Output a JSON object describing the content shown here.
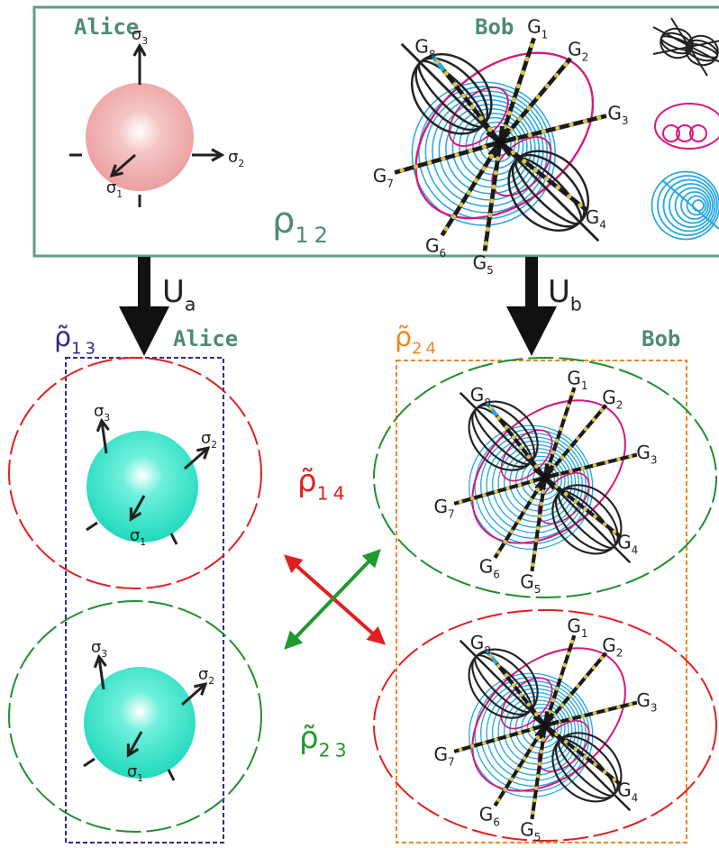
{
  "top_panel": {
    "alice": {
      "label": "Alice",
      "axes": [
        {
          "base": "σ",
          "sub": "3"
        },
        {
          "base": "σ",
          "sub": "2"
        },
        {
          "base": "σ",
          "sub": "1"
        }
      ]
    },
    "bob": {
      "label": "Bob",
      "gates": [
        {
          "base": "G",
          "sub": "1"
        },
        {
          "base": "G",
          "sub": "2"
        },
        {
          "base": "G",
          "sub": "3"
        },
        {
          "base": "G",
          "sub": "4"
        },
        {
          "base": "G",
          "sub": "5"
        },
        {
          "base": "G",
          "sub": "6"
        },
        {
          "base": "G",
          "sub": "7"
        },
        {
          "base": "G",
          "sub": "8"
        }
      ]
    },
    "state": {
      "base": "ρ",
      "sub": "12"
    }
  },
  "operations": [
    {
      "base": "U",
      "sub": "a"
    },
    {
      "base": "U",
      "sub": "b"
    }
  ],
  "bottom_panel": {
    "alice_label": "Alice",
    "bob_label": "Bob",
    "states": [
      {
        "base": "ρ̃",
        "sub": "13"
      },
      {
        "base": "ρ̃",
        "sub": "24"
      },
      {
        "base": "ρ̃",
        "sub": "14"
      },
      {
        "base": "ρ̃",
        "sub": "23"
      }
    ],
    "alice_spheres": [
      {
        "axes": [
          {
            "base": "σ",
            "sub": "3"
          },
          {
            "base": "σ",
            "sub": "2"
          },
          {
            "base": "σ",
            "sub": "1"
          }
        ]
      },
      {
        "axes": [
          {
            "base": "σ",
            "sub": "3"
          },
          {
            "base": "σ",
            "sub": "2"
          },
          {
            "base": "σ",
            "sub": "1"
          }
        ]
      }
    ],
    "bob_diagrams": [
      {
        "gates": [
          {
            "base": "G",
            "sub": "1"
          },
          {
            "base": "G",
            "sub": "2"
          },
          {
            "base": "G",
            "sub": "3"
          },
          {
            "base": "G",
            "sub": "4"
          },
          {
            "base": "G",
            "sub": "5"
          },
          {
            "base": "G",
            "sub": "6"
          },
          {
            "base": "G",
            "sub": "7"
          },
          {
            "base": "G",
            "sub": "8"
          }
        ]
      },
      {
        "gates": [
          {
            "base": "G",
            "sub": "1"
          },
          {
            "base": "G",
            "sub": "2"
          },
          {
            "base": "G",
            "sub": "3"
          },
          {
            "base": "G",
            "sub": "4"
          },
          {
            "base": "G",
            "sub": "5"
          },
          {
            "base": "G",
            "sub": "6"
          },
          {
            "base": "G",
            "sub": "7"
          },
          {
            "base": "G",
            "sub": "8"
          }
        ]
      }
    ]
  }
}
